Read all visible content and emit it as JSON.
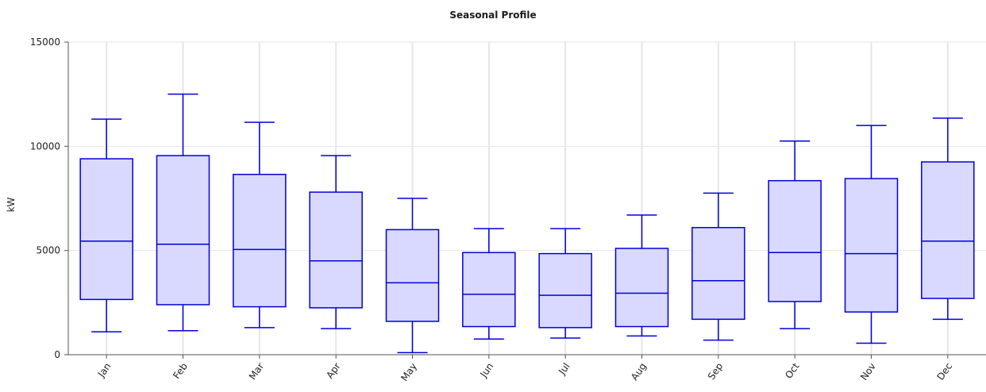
{
  "chart_data": {
    "type": "box",
    "title": "Seasonal Profile",
    "xlabel": "",
    "ylabel": "kW",
    "ylim": [
      0,
      15000
    ],
    "yticks": [
      0,
      5000,
      10000,
      15000
    ],
    "grid": true,
    "colors": {
      "stroke": "#0000dd",
      "fill": "#d9d9ff",
      "grid": "#e6e6e6",
      "axis": "#555555"
    },
    "categories": [
      "Jan",
      "Feb",
      "Mar",
      "Apr",
      "May",
      "Jun",
      "Jul",
      "Aug",
      "Sep",
      "Oct",
      "Nov",
      "Dec"
    ],
    "boxes": [
      {
        "min": 1100,
        "q1": 2650,
        "median": 5450,
        "q3": 9400,
        "max": 11300
      },
      {
        "min": 1150,
        "q1": 2400,
        "median": 5300,
        "q3": 9550,
        "max": 12500
      },
      {
        "min": 1300,
        "q1": 2300,
        "median": 5050,
        "q3": 8650,
        "max": 11150
      },
      {
        "min": 1250,
        "q1": 2250,
        "median": 4500,
        "q3": 7800,
        "max": 9550
      },
      {
        "min": 100,
        "q1": 1600,
        "median": 3450,
        "q3": 6000,
        "max": 7500
      },
      {
        "min": 750,
        "q1": 1350,
        "median": 2900,
        "q3": 4900,
        "max": 6050
      },
      {
        "min": 800,
        "q1": 1300,
        "median": 2850,
        "q3": 4850,
        "max": 6050
      },
      {
        "min": 900,
        "q1": 1350,
        "median": 2950,
        "q3": 5100,
        "max": 6700
      },
      {
        "min": 700,
        "q1": 1700,
        "median": 3550,
        "q3": 6100,
        "max": 7750
      },
      {
        "min": 1250,
        "q1": 2550,
        "median": 4900,
        "q3": 8350,
        "max": 10250
      },
      {
        "min": 550,
        "q1": 2050,
        "median": 4850,
        "q3": 8450,
        "max": 11000
      },
      {
        "min": 1700,
        "q1": 2700,
        "median": 5450,
        "q3": 9250,
        "max": 11350
      }
    ]
  }
}
